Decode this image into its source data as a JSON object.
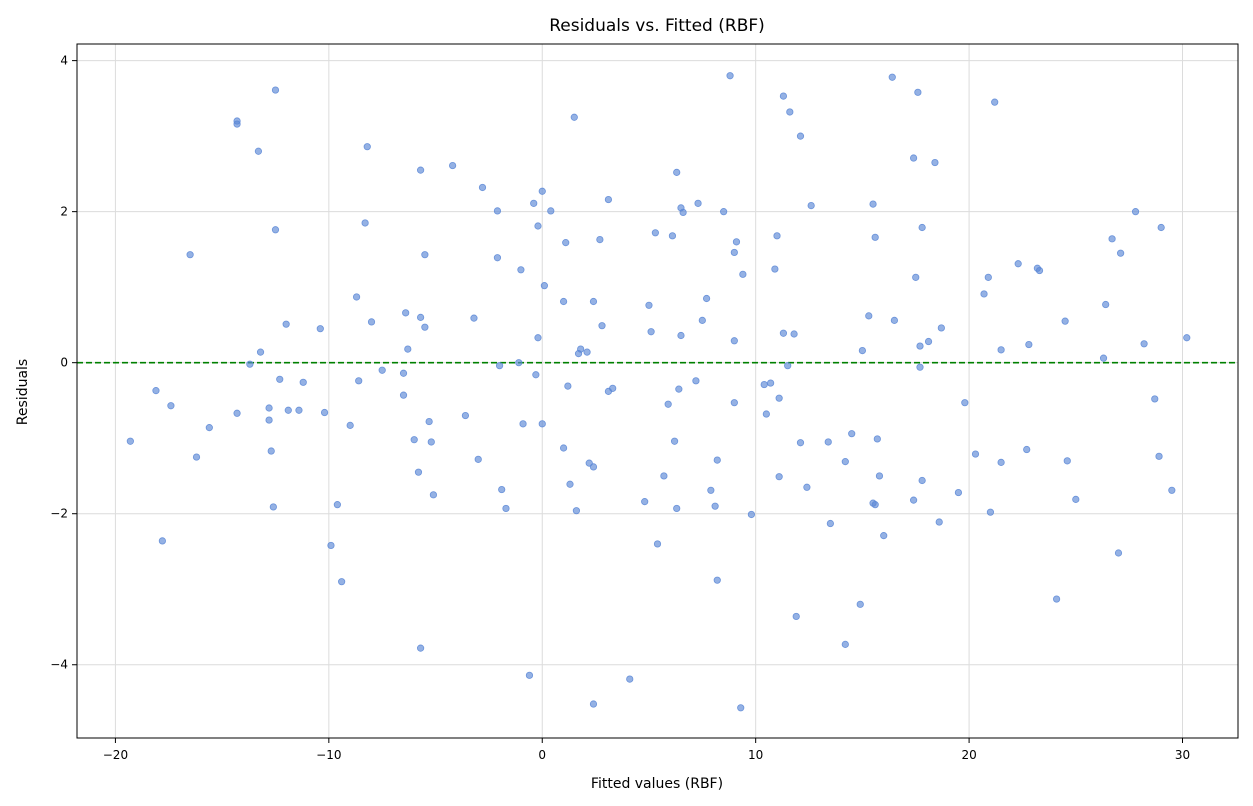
{
  "chart_data": {
    "type": "scatter",
    "title": "Residuals vs. Fitted (RBF)",
    "xlabel": "Fitted values (RBF)",
    "ylabel": "Residuals",
    "xlim": [
      -21.8,
      32.6
    ],
    "ylim": [
      -4.97,
      4.22
    ],
    "xticks": [
      -20,
      -10,
      0,
      10,
      20,
      30
    ],
    "xtick_labels": [
      "−20",
      "−10",
      "0",
      "10",
      "20",
      "30"
    ],
    "yticks": [
      -4,
      -2,
      0,
      2,
      4
    ],
    "ytick_labels": [
      "−4",
      "−2",
      "0",
      "2",
      "4"
    ],
    "grid": true,
    "reference_line": {
      "y": 0,
      "style": "dashed",
      "color": "#008000"
    },
    "point_color": "#5b87d6",
    "points": [
      [
        -19.3,
        -1.04
      ],
      [
        -18.1,
        -0.37
      ],
      [
        -17.8,
        -2.36
      ],
      [
        -17.4,
        -0.57
      ],
      [
        -16.5,
        1.43
      ],
      [
        -16.2,
        -1.25
      ],
      [
        -15.6,
        -0.86
      ],
      [
        -14.3,
        3.2
      ],
      [
        -14.3,
        3.16
      ],
      [
        -14.3,
        -0.67
      ],
      [
        -13.3,
        2.8
      ],
      [
        -13.2,
        0.14
      ],
      [
        -12.8,
        -0.6
      ],
      [
        -12.8,
        -0.76
      ],
      [
        -12.7,
        -1.17
      ],
      [
        -12.5,
        3.61
      ],
      [
        -12.5,
        1.76
      ],
      [
        -12.3,
        -0.22
      ],
      [
        -12.0,
        0.51
      ],
      [
        -11.9,
        -0.63
      ],
      [
        -11.4,
        -0.63
      ],
      [
        -11.2,
        -0.26
      ],
      [
        -10.4,
        0.45
      ],
      [
        -10.2,
        -0.66
      ],
      [
        -13.7,
        -0.02
      ],
      [
        -12.6,
        -1.91
      ],
      [
        -9.9,
        -2.42
      ],
      [
        -9.6,
        -1.88
      ],
      [
        -9.4,
        -2.9
      ],
      [
        -9.0,
        -0.83
      ],
      [
        -8.7,
        0.87
      ],
      [
        -8.6,
        -0.24
      ],
      [
        -8.3,
        1.85
      ],
      [
        -8.2,
        2.86
      ],
      [
        -8.0,
        0.54
      ],
      [
        -7.5,
        -0.1
      ],
      [
        -6.5,
        -0.43
      ],
      [
        -6.5,
        -0.14
      ],
      [
        -6.4,
        0.66
      ],
      [
        -6.3,
        0.18
      ],
      [
        -6.0,
        -1.02
      ],
      [
        -5.8,
        -1.45
      ],
      [
        -5.7,
        0.6
      ],
      [
        -5.7,
        2.55
      ],
      [
        -5.7,
        -3.78
      ],
      [
        -5.5,
        0.47
      ],
      [
        -5.5,
        1.43
      ],
      [
        -5.3,
        -0.78
      ],
      [
        -5.2,
        -1.05
      ],
      [
        -5.1,
        -1.75
      ],
      [
        -4.2,
        2.61
      ],
      [
        -3.6,
        -0.7
      ],
      [
        -3.2,
        0.59
      ],
      [
        -3.0,
        -1.28
      ],
      [
        -2.8,
        2.32
      ],
      [
        -2.1,
        2.01
      ],
      [
        -2.1,
        1.39
      ],
      [
        -2.0,
        -0.04
      ],
      [
        -1.9,
        -1.68
      ],
      [
        -1.7,
        -1.93
      ],
      [
        -1.1,
        0.0
      ],
      [
        -1.0,
        1.23
      ],
      [
        -0.9,
        -0.81
      ],
      [
        -0.6,
        -4.14
      ],
      [
        -0.4,
        2.11
      ],
      [
        -0.3,
        -0.16
      ],
      [
        -0.2,
        1.81
      ],
      [
        -0.2,
        0.33
      ],
      [
        0.0,
        2.27
      ],
      [
        0.0,
        -0.81
      ],
      [
        0.1,
        1.02
      ],
      [
        0.4,
        2.01
      ],
      [
        1.0,
        0.81
      ],
      [
        1.0,
        -1.13
      ],
      [
        1.1,
        1.59
      ],
      [
        1.2,
        -0.31
      ],
      [
        1.3,
        -1.61
      ],
      [
        1.5,
        3.25
      ],
      [
        1.6,
        -1.96
      ],
      [
        1.7,
        0.12
      ],
      [
        1.8,
        0.18
      ],
      [
        2.1,
        0.14
      ],
      [
        2.2,
        -1.33
      ],
      [
        2.4,
        0.81
      ],
      [
        2.4,
        -1.38
      ],
      [
        2.4,
        -4.52
      ],
      [
        2.7,
        1.63
      ],
      [
        2.8,
        0.49
      ],
      [
        3.1,
        2.16
      ],
      [
        3.1,
        -0.38
      ],
      [
        3.3,
        -0.34
      ],
      [
        4.1,
        -4.19
      ],
      [
        4.8,
        -1.84
      ],
      [
        5.0,
        0.76
      ],
      [
        5.1,
        0.41
      ],
      [
        5.3,
        1.72
      ],
      [
        5.4,
        -2.4
      ],
      [
        5.7,
        -1.5
      ],
      [
        5.9,
        -0.55
      ],
      [
        6.1,
        1.68
      ],
      [
        6.2,
        -1.04
      ],
      [
        6.3,
        2.52
      ],
      [
        6.3,
        -1.93
      ],
      [
        6.4,
        -0.35
      ],
      [
        6.5,
        0.36
      ],
      [
        6.5,
        2.05
      ],
      [
        6.6,
        1.99
      ],
      [
        7.2,
        -0.24
      ],
      [
        7.3,
        2.11
      ],
      [
        7.5,
        0.56
      ],
      [
        7.7,
        0.85
      ],
      [
        7.9,
        -1.69
      ],
      [
        8.1,
        -1.9
      ],
      [
        8.2,
        -1.29
      ],
      [
        8.2,
        -2.88
      ],
      [
        8.5,
        2.0
      ],
      [
        8.8,
        3.8
      ],
      [
        9.0,
        0.29
      ],
      [
        9.0,
        -0.53
      ],
      [
        9.0,
        1.46
      ],
      [
        9.1,
        1.6
      ],
      [
        9.3,
        -4.57
      ],
      [
        9.4,
        1.17
      ],
      [
        9.8,
        -2.01
      ],
      [
        10.4,
        -0.29
      ],
      [
        10.5,
        -0.68
      ],
      [
        10.7,
        -0.27
      ],
      [
        10.9,
        1.24
      ],
      [
        11.0,
        1.68
      ],
      [
        11.1,
        -1.51
      ],
      [
        11.1,
        -0.47
      ],
      [
        11.3,
        3.53
      ],
      [
        11.3,
        0.39
      ],
      [
        11.5,
        -0.04
      ],
      [
        11.6,
        3.32
      ],
      [
        11.8,
        0.38
      ],
      [
        11.9,
        -3.36
      ],
      [
        12.1,
        -1.06
      ],
      [
        12.1,
        3.0
      ],
      [
        12.4,
        -1.65
      ],
      [
        12.6,
        2.08
      ],
      [
        13.4,
        -1.05
      ],
      [
        13.5,
        -2.13
      ],
      [
        14.2,
        -1.31
      ],
      [
        14.2,
        -3.73
      ],
      [
        14.5,
        -0.94
      ],
      [
        14.9,
        -3.2
      ],
      [
        15.0,
        0.16
      ],
      [
        15.3,
        0.62
      ],
      [
        15.5,
        -1.86
      ],
      [
        15.5,
        2.1
      ],
      [
        15.6,
        -1.88
      ],
      [
        15.6,
        1.66
      ],
      [
        15.7,
        -1.01
      ],
      [
        15.8,
        -1.5
      ],
      [
        16.0,
        -2.29
      ],
      [
        16.4,
        3.78
      ],
      [
        16.5,
        0.56
      ],
      [
        17.4,
        -1.82
      ],
      [
        17.4,
        2.71
      ],
      [
        17.5,
        1.13
      ],
      [
        17.6,
        3.58
      ],
      [
        17.7,
        -0.06
      ],
      [
        17.7,
        0.22
      ],
      [
        17.8,
        1.79
      ],
      [
        17.8,
        -1.56
      ],
      [
        18.1,
        0.28
      ],
      [
        18.4,
        2.65
      ],
      [
        18.6,
        -2.11
      ],
      [
        18.7,
        0.46
      ],
      [
        19.5,
        -1.72
      ],
      [
        19.8,
        -0.53
      ],
      [
        20.3,
        -1.21
      ],
      [
        20.7,
        0.91
      ],
      [
        20.9,
        1.13
      ],
      [
        21.0,
        -1.98
      ],
      [
        21.2,
        3.45
      ],
      [
        21.5,
        0.17
      ],
      [
        21.5,
        -1.32
      ],
      [
        22.3,
        1.31
      ],
      [
        22.7,
        -1.15
      ],
      [
        22.8,
        0.24
      ],
      [
        23.2,
        1.25
      ],
      [
        23.3,
        1.22
      ],
      [
        24.1,
        -3.13
      ],
      [
        24.5,
        0.55
      ],
      [
        24.6,
        -1.3
      ],
      [
        25.0,
        -1.81
      ],
      [
        26.3,
        0.06
      ],
      [
        26.4,
        0.77
      ],
      [
        26.7,
        1.64
      ],
      [
        27.0,
        -2.52
      ],
      [
        27.1,
        1.45
      ],
      [
        27.8,
        2.0
      ],
      [
        28.2,
        0.25
      ],
      [
        28.7,
        -0.48
      ],
      [
        28.9,
        -1.24
      ],
      [
        29.0,
        1.79
      ],
      [
        29.5,
        -1.69
      ],
      [
        30.2,
        0.33
      ]
    ]
  }
}
